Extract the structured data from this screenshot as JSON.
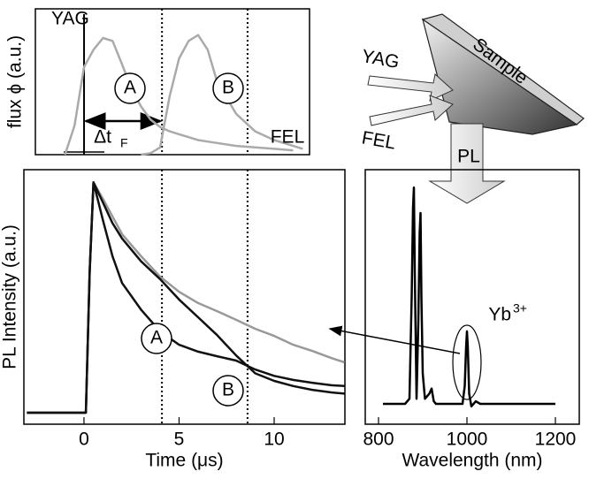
{
  "chart_data": [
    {
      "type": "line",
      "ylabel": "flux ϕ (a.u.)",
      "labels": {
        "yag": "YAG",
        "a": "A",
        "b": "B",
        "dt": "Δt",
        "dt_sub": "F",
        "fel": "FEL"
      },
      "xlim": [
        -2.56,
        11.86
      ],
      "ylim": [
        0,
        1
      ],
      "x": [
        -1,
        -0.5,
        0,
        0.5,
        1,
        1.5,
        2,
        2.5,
        3,
        3.5,
        4,
        4.5,
        5,
        5.5,
        6,
        6.5,
        7,
        8,
        9,
        10,
        11,
        11.5
      ],
      "series": [
        {
          "color": "#aaaaaa",
          "values": [
            0,
            0.2,
            0.6,
            0.72,
            0.8,
            0.78,
            0.62,
            0.45,
            0.33,
            0.24,
            0.19,
            0.16,
            0.14,
            0.12,
            0.1,
            0.09,
            0.08,
            0.06,
            0.05,
            0.04,
            0.03,
            null
          ]
        },
        {
          "color": "#aaaaaa",
          "values": [
            null,
            null,
            null,
            null,
            null,
            null,
            null,
            null,
            0,
            0.01,
            0.05,
            0.4,
            0.66,
            0.78,
            0.82,
            0.72,
            0.5,
            0.28,
            0.16,
            0.1,
            0.06,
            0.04
          ]
        }
      ],
      "pulse_line": 0,
      "dotted_lines": [
        4.1,
        8.6
      ],
      "delay_arrow": [
        0,
        4.1
      ]
    },
    {
      "type": "line",
      "ylabel": "PL Intensity (a.u.)",
      "xlabel": "Time (μs)",
      "labels": {
        "a": "A",
        "b": "B"
      },
      "xlim": [
        -3.16,
        13.72
      ],
      "ylim": [
        0,
        1
      ],
      "xticks": [
        0,
        5,
        10
      ],
      "x": [
        -3,
        -1,
        0,
        0.1,
        0.3,
        0.5,
        1,
        1.5,
        2,
        3,
        4,
        5,
        6,
        7,
        8,
        9,
        10,
        11,
        12,
        13,
        13.7
      ],
      "series": [
        {
          "color": "#999999",
          "values": [
            0.045,
            0.045,
            0.045,
            0.045,
            0.6,
            0.95,
            0.885,
            0.816,
            0.747,
            0.66,
            0.58,
            0.52,
            0.476,
            0.444,
            0.41,
            0.375,
            0.347,
            0.312,
            0.288,
            0.26,
            0.243
          ]
        },
        {
          "color": "#111111",
          "values": [
            0.045,
            0.045,
            0.045,
            0.045,
            0.6,
            0.95,
            0.8,
            0.66,
            0.555,
            0.45,
            0.365,
            0.312,
            0.285,
            0.267,
            0.25,
            0.215,
            0.19,
            0.174,
            0.163,
            0.153,
            0.15
          ]
        },
        {
          "color": "#111111",
          "values": [
            0.045,
            0.045,
            0.045,
            0.045,
            0.6,
            0.95,
            0.87,
            0.79,
            0.73,
            0.64,
            0.57,
            0.49,
            0.42,
            0.35,
            0.27,
            0.2,
            0.17,
            0.15,
            0.135,
            0.125,
            0.12
          ]
        }
      ],
      "dotted_lines": [
        4.1,
        8.6
      ]
    },
    {
      "type": "line",
      "xlabel": "Wavelength (nm)",
      "labels": {
        "ion": "Yb",
        "charge": "3+"
      },
      "xlim": [
        770,
        1254
      ],
      "ylim": [
        0,
        1
      ],
      "xticks": [
        800,
        1000,
        1200
      ],
      "x": [
        810,
        860,
        870,
        875,
        878,
        880,
        882,
        886,
        890,
        893,
        895,
        897,
        900,
        905,
        915,
        920,
        925,
        930,
        990,
        995,
        998,
        1000,
        1002,
        1005,
        1010,
        1020,
        1030,
        1040,
        1100,
        1200
      ],
      "series": [
        {
          "color": "#000000",
          "values": [
            0.08,
            0.08,
            0.1,
            0.5,
            0.85,
            0.93,
            0.6,
            0.1,
            0.4,
            0.75,
            0.83,
            0.5,
            0.2,
            0.1,
            0.12,
            0.14,
            0.09,
            0.08,
            0.08,
            0.15,
            0.3,
            0.365,
            0.3,
            0.12,
            0.07,
            0.09,
            0.08,
            0.08,
            0.08,
            0.08
          ]
        }
      ]
    }
  ],
  "diagram": {
    "sample": "Sample",
    "yag": "YAG",
    "fel": "FEL",
    "pl": "PL"
  }
}
